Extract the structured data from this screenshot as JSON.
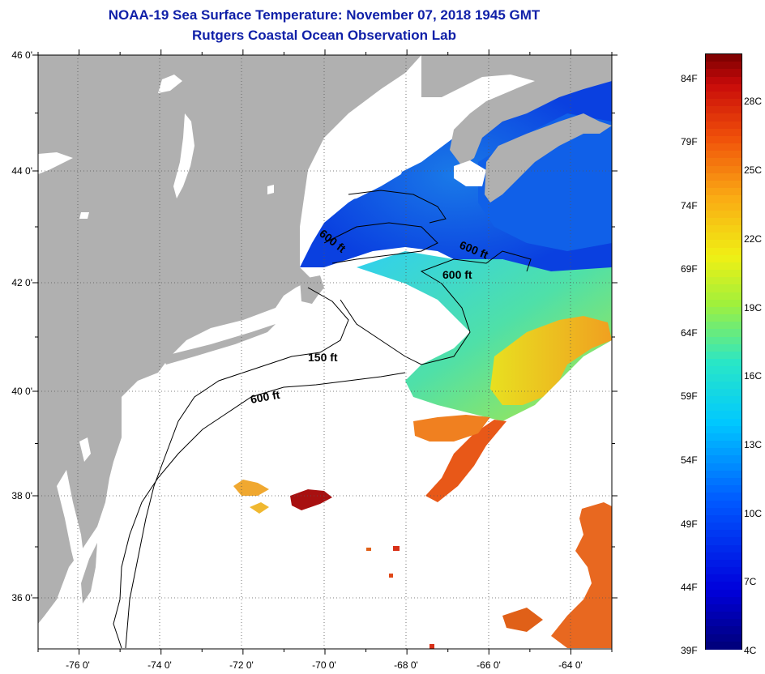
{
  "header": {
    "title": "NOAA-19 Sea Surface Temperature:  November 07, 2018 1945 GMT",
    "subtitle": "Rutgers Coastal Ocean Observation Lab"
  },
  "chart_data": {
    "type": "heatmap",
    "title": "NOAA-19 Sea Surface Temperature:  November 07, 2018 1945 GMT",
    "subtitle": "Rutgers Coastal Ocean Observation Lab",
    "x_ticks": [
      "-76 0'",
      "-74 0'",
      "-72 0'",
      "-70 0'",
      "-68 0'",
      "-66 0'",
      "-64 0'"
    ],
    "y_ticks": [
      "46 0'",
      "44 0'",
      "42 0'",
      "40 0'",
      "38 0'",
      "36 0'"
    ],
    "xlim": [
      -77,
      -63
    ],
    "ylim": [
      35,
      46
    ],
    "grid": "dotted",
    "contour_labels": [
      "600 ft",
      "600 ft",
      "600 ft",
      "150 ft",
      "600 ft"
    ],
    "colorbar": {
      "fahrenheit_labels": [
        "84F",
        "79F",
        "74F",
        "69F",
        "64F",
        "59F",
        "54F",
        "49F",
        "44F",
        "39F"
      ],
      "celsius_labels": [
        "28C",
        "25C",
        "22C",
        "19C",
        "16C",
        "13C",
        "10C",
        "7C",
        "4C"
      ],
      "range_c": [
        4,
        30
      ]
    }
  },
  "colors": {
    "title": "#1020a8",
    "land": "#b0b0b0",
    "ocean_no_data": "#ffffff"
  }
}
